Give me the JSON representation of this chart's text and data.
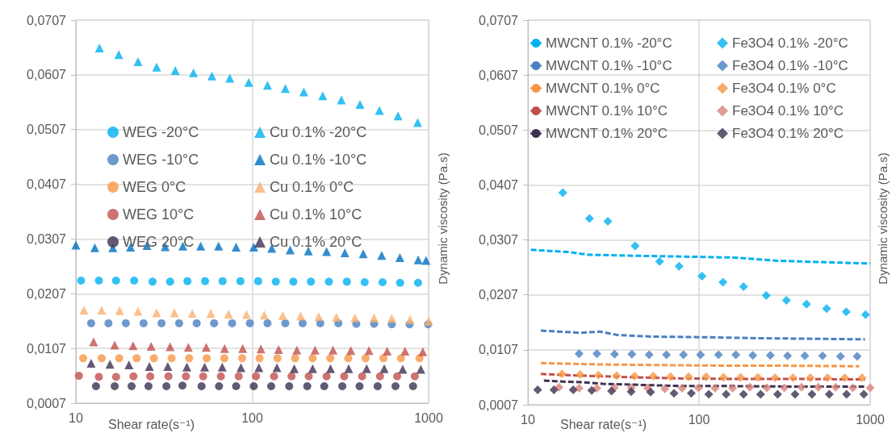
{
  "chart_data": [
    {
      "type": "scatter",
      "xlabel": "Shear rate(s⁻¹)",
      "ylabel": "Dynamic viscosity (Pa.s)",
      "log": "x",
      "grid": true,
      "legend": "center",
      "xlim": [
        10,
        1000
      ],
      "xticks": [
        10,
        100,
        1000
      ],
      "ylim": [
        0.0007,
        0.0707
      ],
      "yticks": [
        {
          "value": 0.0007,
          "label": "0,0007"
        },
        {
          "value": 0.0107,
          "label": "0,0107"
        },
        {
          "value": 0.0207,
          "label": "0,0207"
        },
        {
          "value": 0.0307,
          "label": "0,0307"
        },
        {
          "value": 0.0407,
          "label": "0,0407"
        },
        {
          "value": 0.0507,
          "label": "0,0507"
        },
        {
          "value": 0.0607,
          "label": "0,0607"
        },
        {
          "value": 0.0707,
          "label": "0,0707"
        }
      ],
      "series": [
        {
          "name": "WEG -20°C",
          "type": "scatter",
          "marker": "circle",
          "color": "#00b0f0",
          "x": [
            10.7,
            13.5,
            16.9,
            21.4,
            27.2,
            34.2,
            42.9,
            54,
            67.9,
            85.7,
            108,
            136,
            171,
            215,
            272,
            344,
            434,
            548,
            689,
            871
          ],
          "values": [
            0.0231,
            0.0231,
            0.0231,
            0.0231,
            0.0229,
            0.0229,
            0.023,
            0.023,
            0.023,
            0.023,
            0.023,
            0.0229,
            0.0229,
            0.0229,
            0.0229,
            0.0229,
            0.0228,
            0.0228,
            0.0227,
            0.0227
          ]
        },
        {
          "name": "WEG -10°C",
          "type": "scatter",
          "marker": "circle",
          "color": "#4a7fc1",
          "x": [
            12.2,
            15.3,
            19.2,
            24.2,
            30.6,
            38.5,
            48.4,
            60.8,
            76.9,
            97,
            122,
            154,
            193,
            243,
            308,
            389,
            491,
            618,
            780,
            993
          ],
          "values": [
            0.0153,
            0.0153,
            0.0153,
            0.0153,
            0.0153,
            0.0153,
            0.0153,
            0.0153,
            0.0153,
            0.0153,
            0.0153,
            0.0153,
            0.0153,
            0.0153,
            0.0153,
            0.0152,
            0.0152,
            0.0151,
            0.0151,
            0.0151
          ]
        },
        {
          "name": "WEG 0°C",
          "type": "scatter",
          "marker": "circle",
          "color": "#f79646",
          "x": [
            11,
            14,
            17.6,
            22.1,
            27.7,
            34.9,
            43.9,
            55.2,
            69.4,
            87.6,
            110,
            139,
            175,
            220,
            277,
            350,
            439,
            554,
            697,
            887
          ],
          "values": [
            0.0089,
            0.0089,
            0.0089,
            0.0089,
            0.0089,
            0.0089,
            0.0089,
            0.0089,
            0.0089,
            0.0089,
            0.0089,
            0.0089,
            0.0089,
            0.0089,
            0.0089,
            0.0089,
            0.0089,
            0.0089,
            0.0089,
            0.0089
          ]
        },
        {
          "name": "WEG 10°C",
          "type": "scatter",
          "marker": "circle",
          "color": "#c0504d",
          "x": [
            10.4,
            13.5,
            16.9,
            21.2,
            26.4,
            33.5,
            42.1,
            52.7,
            66.4,
            83.8,
            105,
            133,
            167,
            209,
            264,
            332,
            420,
            530,
            663,
            835
          ],
          "values": [
            0.0057,
            0.0055,
            0.0055,
            0.0056,
            0.0056,
            0.0056,
            0.0056,
            0.0056,
            0.0056,
            0.0056,
            0.0056,
            0.0056,
            0.0056,
            0.0056,
            0.0056,
            0.0056,
            0.0056,
            0.0056,
            0.0056,
            0.0056
          ]
        },
        {
          "name": "WEG 20°C",
          "type": "scatter",
          "marker": "circle",
          "color": "#3f3151",
          "x": [
            13,
            16.6,
            20.7,
            25.8,
            32.6,
            40.2,
            51.6,
            64.8,
            81,
            102,
            128,
            162,
            205,
            256,
            324,
            406,
            514,
            649,
            816
          ],
          "values": [
            0.0038,
            0.0038,
            0.0038,
            0.0038,
            0.0038,
            0.0039,
            0.0038,
            0.0038,
            0.0038,
            0.0038,
            0.0038,
            0.0038,
            0.0038,
            0.0038,
            0.0038,
            0.0038,
            0.0038,
            0.0038,
            0.0038
          ]
        },
        {
          "name": "Cu 0.1% -20°C",
          "type": "scatter",
          "marker": "triangle",
          "color": "#00b0f0",
          "x": [
            13.6,
            17.5,
            22.5,
            28.7,
            36.6,
            46.4,
            59,
            74.6,
            95.5,
            122,
            154,
            196,
            251,
            320,
            408,
            526,
            671,
            867
          ],
          "values": [
            0.0656,
            0.0644,
            0.0631,
            0.0621,
            0.0615,
            0.0611,
            0.0605,
            0.0601,
            0.0593,
            0.0588,
            0.0582,
            0.0576,
            0.0569,
            0.0561,
            0.0553,
            0.0542,
            0.0532,
            0.052
          ]
        },
        {
          "name": "Cu 0.1% -10°C",
          "type": "scatter",
          "marker": "triangle",
          "color": "#0070c0",
          "x": [
            10,
            12.8,
            16.2,
            20.4,
            25.3,
            32.1,
            40.4,
            51,
            64.4,
            81,
            102,
            129,
            164,
            208,
            264,
            335,
            426,
            542,
            687,
            873,
            967
          ],
          "values": [
            0.0296,
            0.0291,
            0.0291,
            0.0292,
            0.0295,
            0.0293,
            0.0294,
            0.0294,
            0.0294,
            0.0292,
            0.0292,
            0.029,
            0.0287,
            0.0285,
            0.0284,
            0.0282,
            0.028,
            0.0277,
            0.0273,
            0.0269,
            0.0268
          ]
        },
        {
          "name": "Cu 0.1% 0°C",
          "type": "scatter",
          "marker": "triangle",
          "color": "#fab070",
          "x": [
            11.1,
            14,
            17.7,
            22.5,
            28.7,
            36.2,
            45.7,
            58.2,
            73.4,
            92.7,
            117,
            149,
            188,
            238,
            300,
            382,
            490,
            618,
            785,
            1000
          ],
          "values": [
            0.0177,
            0.0177,
            0.0176,
            0.0175,
            0.0172,
            0.0172,
            0.0171,
            0.0171,
            0.017,
            0.0169,
            0.0168,
            0.0167,
            0.0166,
            0.0165,
            0.0164,
            0.0163,
            0.0163,
            0.0162,
            0.016,
            0.0157
          ]
        },
        {
          "name": "Cu 0.1% 10°C",
          "type": "scatter",
          "marker": "triangle",
          "color": "#c0504d",
          "x": [
            12.6,
            16.6,
            21.1,
            26.7,
            34.2,
            43.4,
            54.8,
            69.7,
            88.3,
            112,
            141,
            179,
            227,
            287,
            362,
            459,
            582,
            735,
            927
          ],
          "values": [
            0.0119,
            0.0113,
            0.0112,
            0.0111,
            0.011,
            0.0109,
            0.0109,
            0.0107,
            0.0107,
            0.0106,
            0.0105,
            0.0104,
            0.0104,
            0.0104,
            0.0103,
            0.0103,
            0.0102,
            0.0102,
            0.0101
          ]
        },
        {
          "name": "Cu 0.1% 20°C",
          "type": "scatter",
          "marker": "triangle",
          "color": "#3f3151",
          "x": [
            12.2,
            15.6,
            20,
            26.1,
            33.2,
            42.6,
            53.7,
            67.6,
            86.3,
            109,
            138,
            173,
            220,
            278,
            352,
            445,
            560,
            713,
            903
          ],
          "values": [
            0.008,
            0.0078,
            0.0077,
            0.0074,
            0.0074,
            0.0073,
            0.0073,
            0.0073,
            0.0072,
            0.0072,
            0.0072,
            0.007,
            0.007,
            0.007,
            0.007,
            0.007,
            0.007,
            0.0069,
            0.0069
          ]
        }
      ]
    },
    {
      "type": "scatter",
      "xlabel": "Shear rate(s⁻¹)",
      "ylabel": "Dynamic viscosity (Pa.s)",
      "log": "x",
      "grid": true,
      "legend": "top",
      "xlim": [
        10,
        1000
      ],
      "xticks": [
        10,
        100,
        1000
      ],
      "ylim": [
        0.0007,
        0.0707
      ],
      "yticks": [
        {
          "value": 0.0007,
          "label": "0,0007"
        },
        {
          "value": 0.0107,
          "label": "0,0107"
        },
        {
          "value": 0.0207,
          "label": "0,0207"
        },
        {
          "value": 0.0307,
          "label": "0,0307"
        },
        {
          "value": 0.0407,
          "label": "0,0407"
        },
        {
          "value": 0.0507,
          "label": "0,0507"
        },
        {
          "value": 0.0607,
          "label": "0,0607"
        },
        {
          "value": 0.0707,
          "label": "0,0707"
        }
      ],
      "series": [
        {
          "name": "MWCNT 0.1% -20°C",
          "type": "line",
          "marker": "none",
          "line_style": "dashed",
          "color": "#00b0f0",
          "x": [
            10.4,
            17.2,
            22.6,
            45.4,
            106,
            157,
            292,
            610,
            1000
          ],
          "values": [
            0.0289,
            0.0285,
            0.028,
            0.0278,
            0.0276,
            0.0275,
            0.0269,
            0.0266,
            0.0264
          ]
        },
        {
          "name": "MWCNT 0.1% -10°C",
          "type": "line",
          "marker": "none",
          "line_style": "dashed",
          "color": "#4a7fc1",
          "x": [
            11.9,
            20.1,
            26.4,
            33.3,
            53,
            106,
            231,
            501,
            933
          ],
          "values": [
            0.0142,
            0.0138,
            0.014,
            0.0134,
            0.0131,
            0.013,
            0.0128,
            0.0127,
            0.0126
          ]
        },
        {
          "name": "MWCNT 0.1% 0°C",
          "type": "line",
          "marker": "none",
          "line_style": "dashed",
          "color": "#f79646",
          "x": [
            11.9,
            20.1,
            33.3,
            72.2,
            157,
            340,
            863
          ],
          "values": [
            0.0083,
            0.0081,
            0.008,
            0.0079,
            0.0078,
            0.0078,
            0.0077
          ]
        },
        {
          "name": "MWCNT 0.1% 10°C",
          "type": "line",
          "marker": "none",
          "line_style": "dashed",
          "color": "#c0504d",
          "x": [
            11.9,
            20.1,
            26.4,
            42,
            72.2,
            157,
            340,
            933
          ],
          "values": [
            0.0063,
            0.006,
            0.0059,
            0.0057,
            0.0055,
            0.0054,
            0.0054,
            0.0053
          ]
        },
        {
          "name": "MWCNT 0.1% 20°C",
          "type": "line",
          "marker": "none",
          "line_style": "dashed",
          "color": "#3f3151",
          "x": [
            12.4,
            16.5,
            20.9,
            27.4,
            35.9,
            47.1,
            61.8,
            81.1,
            157,
            340,
            933
          ],
          "values": [
            0.0051,
            0.0049,
            0.0048,
            0.0045,
            0.0044,
            0.0043,
            0.0042,
            0.0041,
            0.0041,
            0.004,
            0.004
          ]
        },
        {
          "name": "Fe3O4 0.1% -20°C",
          "type": "scatter",
          "marker": "diamond",
          "color": "#00b0f0",
          "x": [
            16,
            22.9,
            29.3,
            42.3,
            58.8,
            76.5,
            104,
            138,
            182,
            247,
            324,
            425,
            557,
            725,
            940
          ],
          "values": [
            0.0393,
            0.0346,
            0.0341,
            0.0296,
            0.0268,
            0.0259,
            0.0241,
            0.023,
            0.0222,
            0.0206,
            0.0197,
            0.019,
            0.0182,
            0.0176,
            0.0171
          ]
        },
        {
          "name": "Fe3O4 0.1% -10°C",
          "type": "scatter",
          "marker": "diamond",
          "color": "#4a7fc1",
          "x": [
            19.9,
            25.3,
            32.1,
            40.5,
            51.1,
            64.5,
            81.1,
            102,
            130,
            164,
            206,
            261,
            329,
            415,
            527,
            671,
            840
          ],
          "values": [
            0.01,
            0.01,
            0.0099,
            0.0099,
            0.0098,
            0.0098,
            0.0098,
            0.0098,
            0.0098,
            0.0098,
            0.0097,
            0.0097,
            0.0096,
            0.0096,
            0.0096,
            0.0095,
            0.0095
          ]
        },
        {
          "name": "Fe3O4 0.1% 0°C",
          "type": "scatter",
          "marker": "diamond",
          "color": "#f79646",
          "x": [
            15.8,
            20.2,
            25.8,
            33,
            42,
            54,
            68.1,
            86.9,
            110,
            139,
            175,
            221,
            278,
            354,
            447,
            563,
            711,
            897
          ],
          "values": [
            0.0063,
            0.0062,
            0.0061,
            0.006,
            0.0059,
            0.0059,
            0.0058,
            0.0058,
            0.0058,
            0.0057,
            0.0057,
            0.0057,
            0.0056,
            0.0056,
            0.0056,
            0.0056,
            0.0056,
            0.0056
          ]
        },
        {
          "name": "Fe3O4 0.1% 10°C",
          "type": "scatter",
          "marker": "diamond",
          "color": "#d9827a",
          "x": [
            15.2,
            19.9,
            25.3,
            32,
            40.1,
            50.1,
            63.1,
            79.6,
            99.3,
            124,
            157,
            198,
            249,
            315,
            397,
            498,
            628,
            793,
            1000
          ],
          "values": [
            0.0039,
            0.0037,
            0.0037,
            0.0038,
            0.0038,
            0.0037,
            0.0036,
            0.0037,
            0.0038,
            0.0037,
            0.0037,
            0.0039,
            0.0038,
            0.0038,
            0.0039,
            0.0039,
            0.0039,
            0.0038,
            0.0038
          ]
        },
        {
          "name": "Fe3O4 0.1% 20°C",
          "type": "scatter",
          "marker": "diamond",
          "color": "#3f3151",
          "x": [
            11.4,
            14.2,
            18.4,
            23.6,
            30.8,
            40.1,
            52.1,
            71.4,
            90.1,
            114,
            144,
            182,
            229,
            288,
            364,
            457,
            577,
            728,
            918
          ],
          "values": [
            0.0034,
            0.0034,
            0.0034,
            0.0033,
            0.0032,
            0.0031,
            0.003,
            0.0028,
            0.0028,
            0.0026,
            0.0026,
            0.0026,
            0.0026,
            0.0026,
            0.0026,
            0.0026,
            0.0026,
            0.0026,
            0.0026
          ]
        }
      ]
    }
  ]
}
